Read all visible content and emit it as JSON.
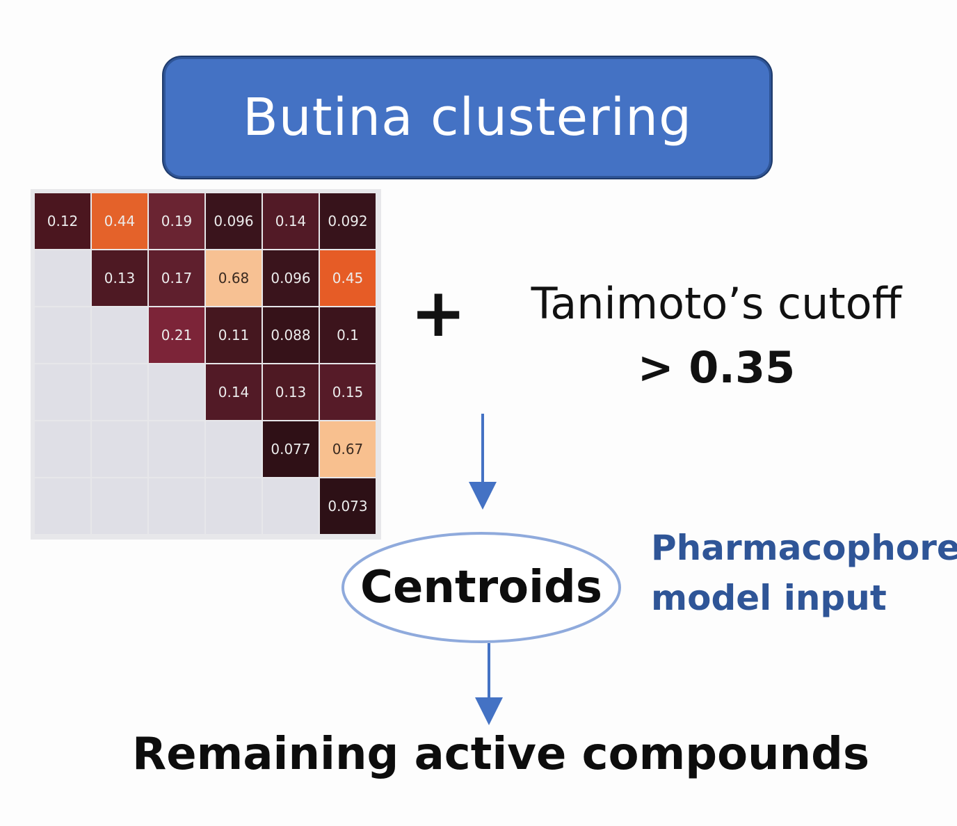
{
  "title": "Butina clustering",
  "matrix": {
    "rows": [
      [
        {
          "v": "0.12",
          "c": "#4b161f"
        },
        {
          "v": "0.44",
          "c": "#e4622a"
        },
        {
          "v": "0.19",
          "c": "#6a2432"
        },
        {
          "v": "0.096",
          "c": "#3a141c"
        },
        {
          "v": "0.14",
          "c": "#521a26"
        },
        {
          "v": "0.092",
          "c": "#37131b"
        }
      ],
      [
        null,
        {
          "v": "0.13",
          "c": "#4e1923"
        },
        {
          "v": "0.17",
          "c": "#5f1f2d"
        },
        {
          "v": "0.68",
          "c": "#f7c193",
          "dark": true
        },
        {
          "v": "0.096",
          "c": "#3a141c"
        },
        {
          "v": "0.45",
          "c": "#e65c26"
        }
      ],
      [
        null,
        null,
        {
          "v": "0.21",
          "c": "#7c2438"
        },
        {
          "v": "0.11",
          "c": "#45171f"
        },
        {
          "v": "0.088",
          "c": "#361219"
        },
        {
          "v": "0.1",
          "c": "#3c141c"
        }
      ],
      [
        null,
        null,
        null,
        {
          "v": "0.14",
          "c": "#521a26"
        },
        {
          "v": "0.13",
          "c": "#4e1923"
        },
        {
          "v": "0.15",
          "c": "#561b28"
        }
      ],
      [
        null,
        null,
        null,
        null,
        {
          "v": "0.077",
          "c": "#2f1016"
        },
        {
          "v": "0.67",
          "c": "#f8c08f",
          "dark": true
        }
      ],
      [
        null,
        null,
        null,
        null,
        null,
        {
          "v": "0.073",
          "c": "#2d1016"
        }
      ]
    ]
  },
  "plus": "+",
  "cutoff": {
    "line1": "Tanimoto’s cutoff",
    "line2": "> 0.35"
  },
  "centroids": "Centroids",
  "pharmacophore": {
    "line1": "Pharmacophore",
    "line2": "model input"
  },
  "remaining": "Remaining active compounds",
  "colors": {
    "accent": "#4472c4",
    "arrow": "#4472c4",
    "label_blue": "#2f5597"
  }
}
